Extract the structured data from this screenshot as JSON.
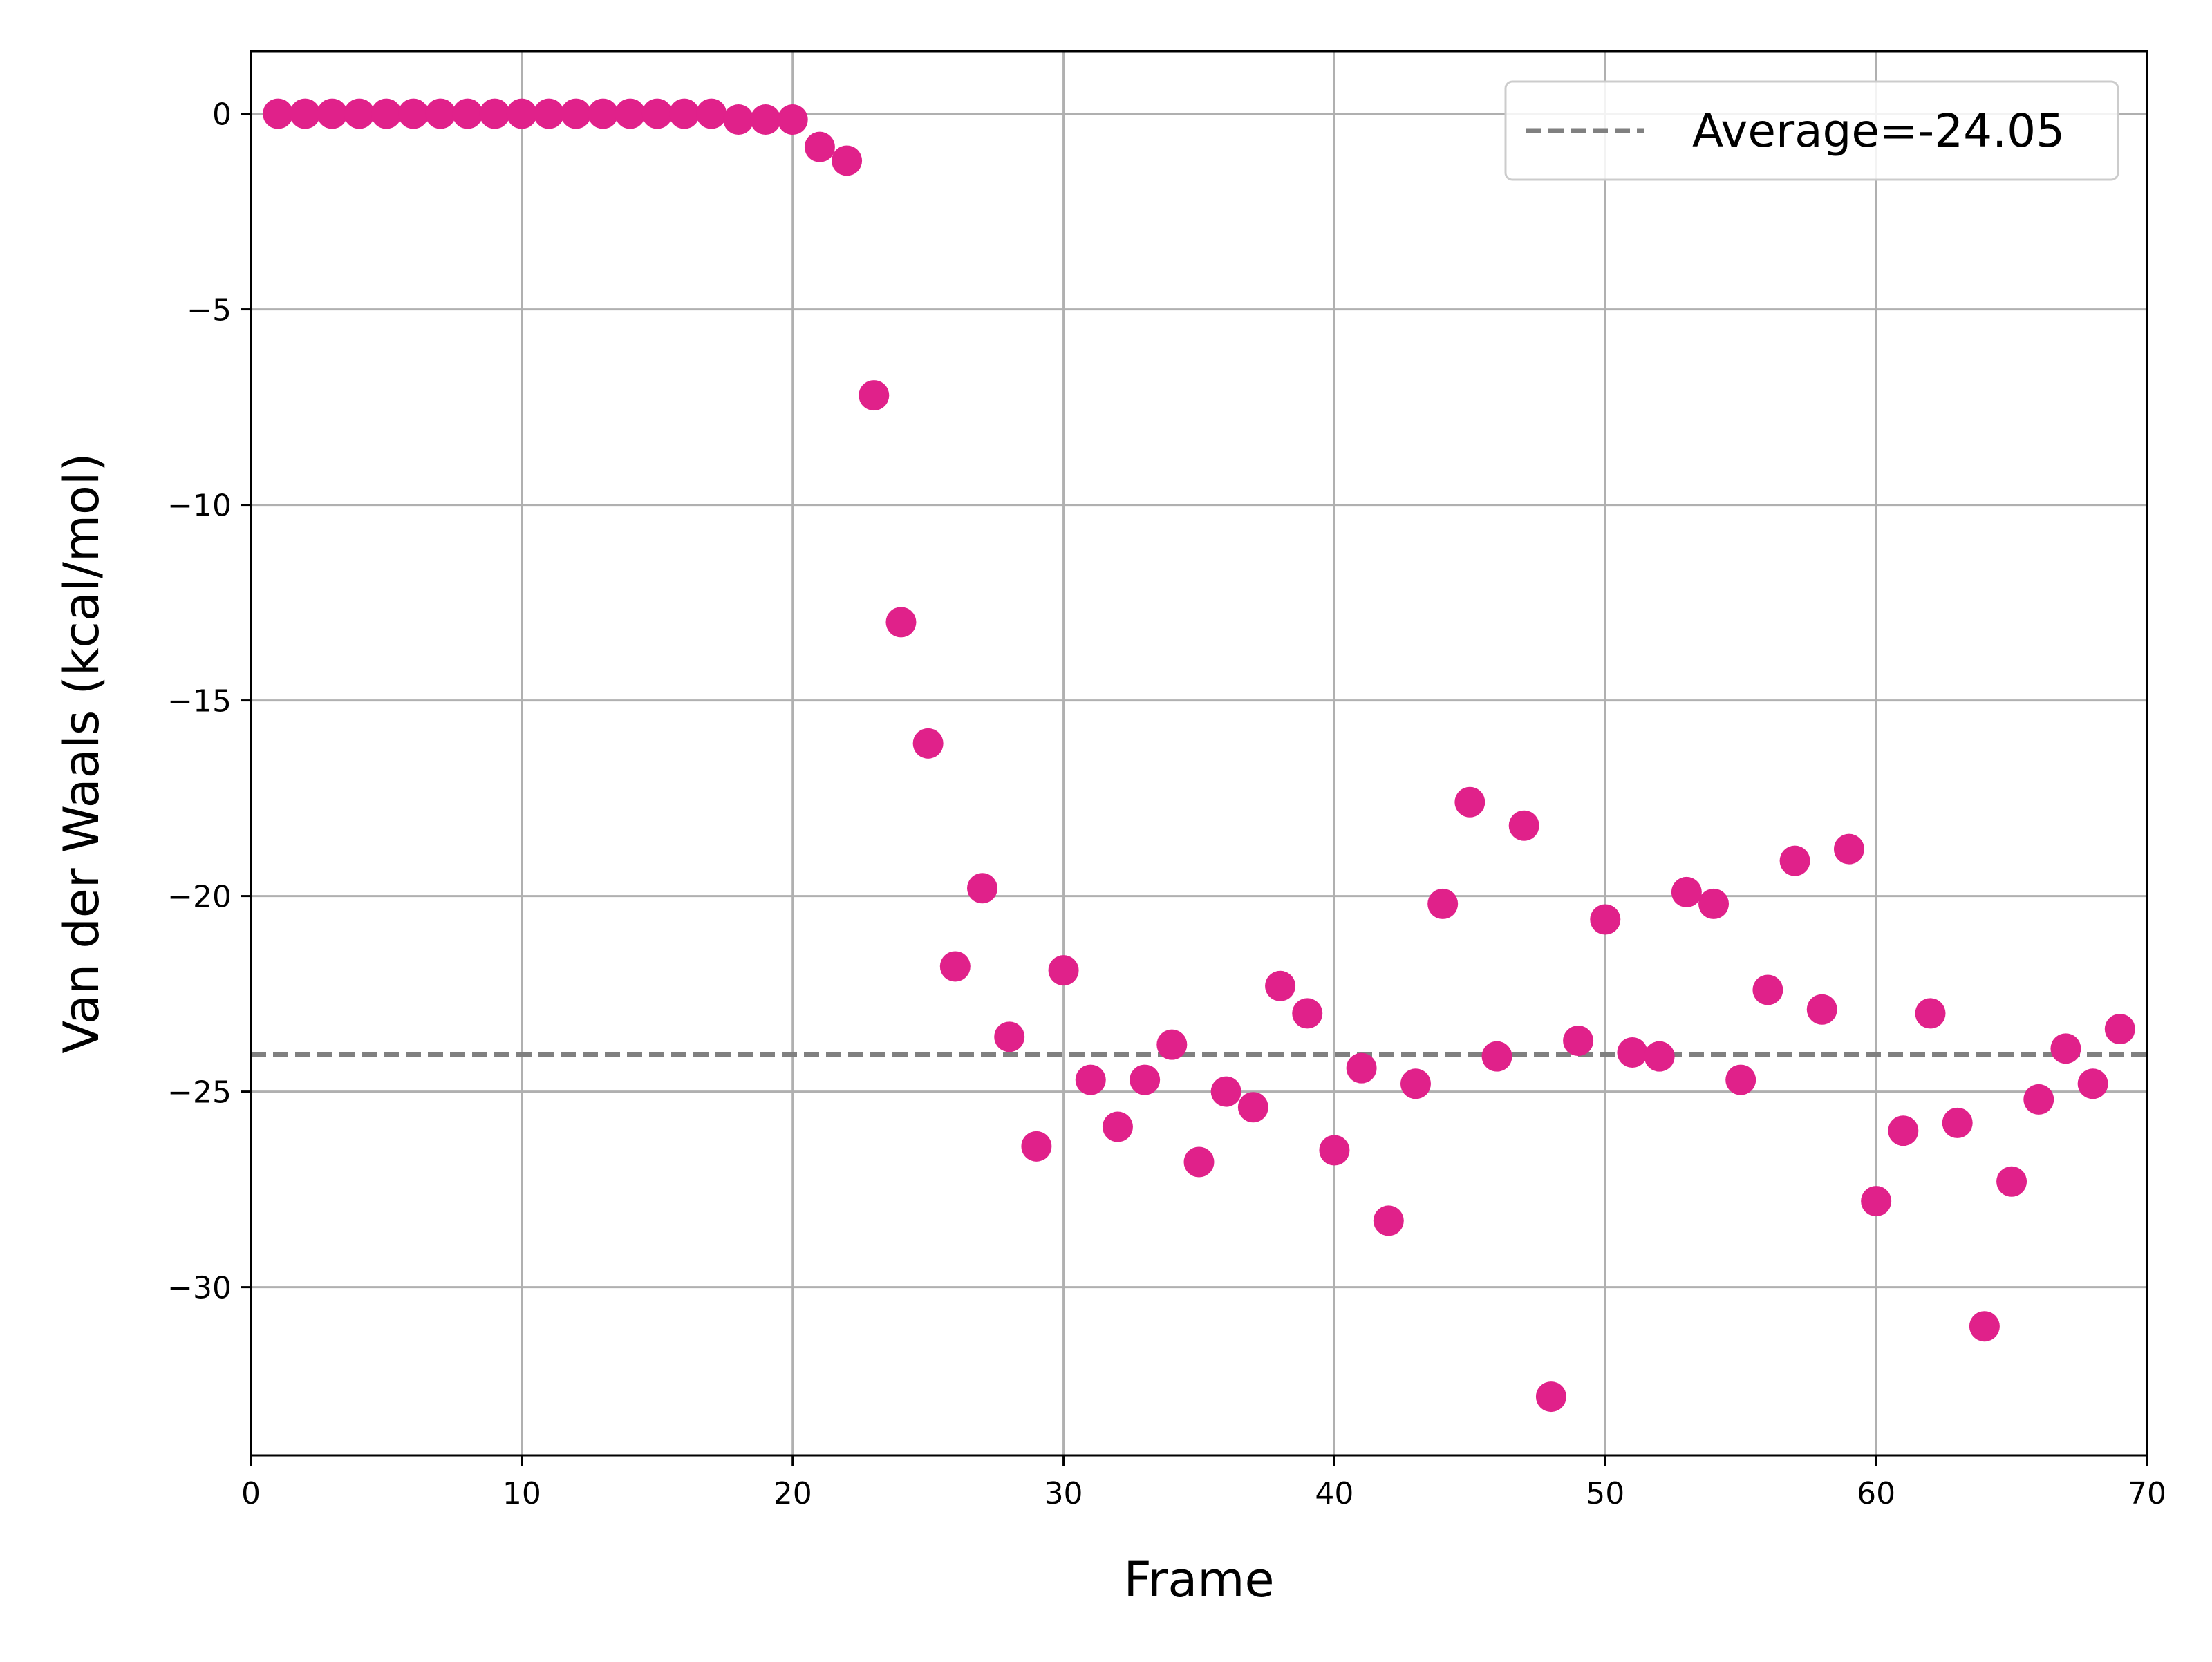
{
  "chart_data": {
    "type": "scatter",
    "xlabel": "Frame",
    "ylabel": "Van der Waals (kcal/mol)",
    "xlim": [
      0,
      70
    ],
    "ylim": [
      -34.3,
      1.6
    ],
    "xticks": [
      0,
      10,
      20,
      30,
      40,
      50,
      60,
      70
    ],
    "yticks": [
      0,
      -5,
      -10,
      -15,
      -20,
      -25,
      -30
    ],
    "ytick_labels": [
      "0",
      "−5",
      "−10",
      "−15",
      "−20",
      "−25",
      "−30"
    ],
    "grid": true,
    "legend_position": "top-right",
    "marker_color": "#e0218a",
    "average": {
      "label": "Average=-24.05",
      "value": -24.05,
      "color": "#808080",
      "style": "dashed"
    },
    "series": [
      {
        "x": [
          1,
          2,
          3,
          4,
          5,
          6,
          7,
          8,
          9,
          10,
          11,
          12,
          13,
          14,
          15,
          16,
          17,
          18,
          19,
          20,
          21,
          22,
          23,
          24,
          25,
          26,
          27,
          28,
          29,
          30,
          31,
          32,
          33,
          34,
          35,
          36,
          37,
          38,
          39,
          40,
          41,
          42,
          43,
          44,
          45,
          46,
          47,
          48,
          49,
          50,
          51,
          52,
          53,
          54,
          55,
          56,
          57,
          58,
          59,
          60,
          61,
          62,
          63,
          64,
          65,
          66,
          67,
          68,
          69
        ],
        "y": [
          0,
          0,
          0,
          0,
          0,
          0,
          0,
          0,
          0,
          0,
          0,
          0,
          0,
          0,
          0,
          0,
          0,
          -0.15,
          -0.15,
          -0.15,
          -0.85,
          -1.2,
          -7.2,
          -13.0,
          -16.1,
          -21.8,
          -19.8,
          -23.6,
          -26.4,
          -21.9,
          -24.7,
          -25.9,
          -24.7,
          -23.8,
          -26.8,
          -25.0,
          -25.4,
          -22.3,
          -23.0,
          -26.5,
          -24.4,
          -28.3,
          -24.8,
          -20.2,
          -17.6,
          -24.1,
          -18.2,
          -32.8,
          -23.7,
          -20.6,
          -24.0,
          -24.1,
          -19.9,
          -20.2,
          -24.7,
          -22.4,
          -19.1,
          -22.9,
          -18.8,
          -27.8,
          -26.0,
          -23.0,
          -25.8,
          -31.0,
          -27.3,
          -25.2,
          -23.9,
          -24.8,
          -23.4
        ]
      }
    ]
  }
}
